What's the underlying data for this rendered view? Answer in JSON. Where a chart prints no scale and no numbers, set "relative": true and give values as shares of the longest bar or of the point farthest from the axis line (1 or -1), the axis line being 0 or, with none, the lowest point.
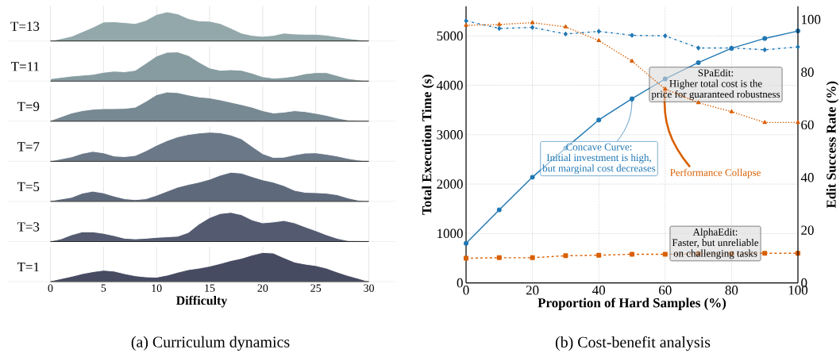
{
  "chart_data": [
    {
      "type": "area",
      "relative": true,
      "ylabel": "T=13",
      "color": "#93a8ab",
      "xlim": [
        -4,
        32.5
      ],
      "xticks": [
        0,
        5,
        10,
        15,
        20,
        25,
        30
      ],
      "grid": "x",
      "tick_labels": false,
      "x": [
        0,
        2,
        4,
        5,
        6,
        7,
        8,
        9,
        10,
        11,
        12,
        13,
        14,
        15,
        16,
        17,
        18,
        19,
        20,
        21,
        22,
        23,
        24,
        25,
        26,
        28,
        30
      ],
      "values": [
        0,
        0.16,
        0.47,
        0.65,
        0.66,
        0.63,
        0.6,
        0.71,
        0.91,
        1,
        0.93,
        0.77,
        0.69,
        0.68,
        0.6,
        0.44,
        0.27,
        0.19,
        0.16,
        0.19,
        0.27,
        0.24,
        0.23,
        0.23,
        0.2,
        0.09,
        0
      ]
    },
    {
      "type": "area",
      "relative": true,
      "ylabel": "T=11",
      "color": "#879ca0",
      "xlim": [
        -4,
        32.5
      ],
      "xticks": [
        0,
        5,
        10,
        15,
        20,
        25,
        30
      ],
      "grid": "x",
      "tick_labels": false,
      "x": [
        0,
        2,
        4,
        5,
        6,
        7,
        8,
        9,
        10,
        11,
        12,
        13,
        14,
        15,
        16,
        17,
        18,
        19,
        20,
        21,
        22,
        23,
        24,
        25,
        26,
        27,
        28,
        29,
        30
      ],
      "values": [
        0.08,
        0.17,
        0.23,
        0.3,
        0.34,
        0.32,
        0.37,
        0.61,
        0.86,
        0.99,
        1,
        0.88,
        0.65,
        0.45,
        0.37,
        0.39,
        0.37,
        0.27,
        0.15,
        0.1,
        0.12,
        0.17,
        0.25,
        0.29,
        0.29,
        0.19,
        0.09,
        0.04,
        0
      ]
    },
    {
      "type": "area",
      "relative": true,
      "ylabel": "T=9",
      "color": "#778993",
      "xlim": [
        -4,
        32.5
      ],
      "xticks": [
        0,
        5,
        10,
        15,
        20,
        25,
        30
      ],
      "grid": "x",
      "tick_labels": false,
      "x": [
        0,
        2,
        3,
        4,
        5,
        6,
        7,
        8,
        9,
        10,
        11,
        12,
        13,
        14,
        15,
        16,
        17,
        18,
        19,
        20,
        21,
        22,
        23,
        24,
        25,
        26,
        27,
        28,
        30
      ],
      "values": [
        0.02,
        0.28,
        0.36,
        0.41,
        0.43,
        0.43,
        0.44,
        0.48,
        0.68,
        0.91,
        1,
        0.98,
        0.9,
        0.83,
        0.8,
        0.73,
        0.65,
        0.57,
        0.48,
        0.36,
        0.28,
        0.31,
        0.36,
        0.33,
        0.27,
        0.2,
        0.11,
        0.04,
        0
      ]
    },
    {
      "type": "area",
      "relative": true,
      "ylabel": "T=7",
      "color": "#6a7888",
      "xlim": [
        -4,
        32.5
      ],
      "xticks": [
        0,
        5,
        10,
        15,
        20,
        25,
        30
      ],
      "grid": "x",
      "tick_labels": false,
      "x": [
        0,
        2,
        3,
        4,
        5,
        6,
        7,
        8,
        9,
        10,
        11,
        12,
        13,
        14,
        15,
        16,
        17,
        18,
        19,
        20,
        21,
        22,
        23,
        24,
        25,
        26,
        27,
        28,
        29,
        30
      ],
      "values": [
        0.01,
        0.15,
        0.27,
        0.34,
        0.29,
        0.18,
        0.16,
        0.2,
        0.36,
        0.55,
        0.71,
        0.84,
        0.92,
        0.97,
        1,
        0.98,
        0.9,
        0.77,
        0.51,
        0.26,
        0.13,
        0.14,
        0.22,
        0.28,
        0.29,
        0.24,
        0.18,
        0.1,
        0.04,
        0
      ]
    },
    {
      "type": "area",
      "relative": true,
      "ylabel": "T=5",
      "color": "#5e6a7c",
      "xlim": [
        -4,
        32.5
      ],
      "xticks": [
        0,
        5,
        10,
        15,
        20,
        25,
        30
      ],
      "grid": "x",
      "tick_labels": false,
      "x": [
        0,
        2,
        3,
        4,
        5,
        6,
        7,
        8,
        9,
        10,
        11,
        12,
        13,
        14,
        15,
        16,
        17,
        18,
        19,
        20,
        21,
        22,
        23,
        24,
        25,
        26,
        27,
        28,
        29,
        30
      ],
      "values": [
        0.02,
        0.14,
        0.28,
        0.35,
        0.29,
        0.18,
        0.09,
        0.06,
        0.09,
        0.21,
        0.35,
        0.49,
        0.58,
        0.66,
        0.76,
        0.9,
        1,
        0.97,
        0.85,
        0.74,
        0.66,
        0.54,
        0.38,
        0.31,
        0.3,
        0.28,
        0.23,
        0.12,
        0.04,
        0
      ]
    },
    {
      "type": "area",
      "relative": true,
      "ylabel": "T=3",
      "color": "#545b70",
      "xlim": [
        -4,
        32.5
      ],
      "xticks": [
        0,
        5,
        10,
        15,
        20,
        25,
        30
      ],
      "grid": "x",
      "tick_labels": false,
      "x": [
        0,
        1,
        2,
        3,
        4,
        5,
        6,
        7,
        8,
        9,
        10,
        11,
        12,
        13,
        14,
        15,
        16,
        17,
        18,
        19,
        20,
        21,
        22,
        23,
        24,
        25,
        26,
        27,
        28,
        30
      ],
      "values": [
        0.01,
        0.09,
        0.23,
        0.33,
        0.33,
        0.28,
        0.2,
        0.11,
        0.09,
        0.11,
        0.14,
        0.16,
        0.18,
        0.31,
        0.6,
        0.82,
        0.96,
        1,
        0.92,
        0.74,
        0.64,
        0.67,
        0.72,
        0.64,
        0.5,
        0.37,
        0.23,
        0.11,
        0.03,
        0
      ]
    },
    {
      "type": "area",
      "relative": true,
      "ylabel": "T=1",
      "color": "#474b62",
      "xlim": [
        -4,
        32.5
      ],
      "xticks": [
        0,
        5,
        10,
        15,
        20,
        25,
        30
      ],
      "grid": "x",
      "tick_labels": "x",
      "xlabel": "Difficulty",
      "title": "(a) Curriculum dynamics",
      "x": [
        0,
        2,
        3,
        4,
        5,
        6,
        7,
        8,
        9,
        10,
        11,
        12,
        13,
        14,
        15,
        16,
        17,
        18,
        19,
        20,
        21,
        22,
        23,
        24,
        25,
        26,
        27,
        28,
        29,
        30
      ],
      "values": [
        0.02,
        0.18,
        0.27,
        0.34,
        0.39,
        0.36,
        0.27,
        0.2,
        0.16,
        0.15,
        0.22,
        0.32,
        0.41,
        0.46,
        0.53,
        0.62,
        0.72,
        0.8,
        0.91,
        1,
        0.98,
        0.82,
        0.67,
        0.6,
        0.55,
        0.46,
        0.33,
        0.21,
        0.11,
        0
      ]
    },
    {
      "type": "line",
      "title": "(b) Cost-benefit analysis",
      "xlabel": "Proportion of Hard Samples (%)",
      "ylabel": "Total Execution Time (s)",
      "y2label": "Edit Success Rate (%)",
      "x": [
        0,
        10,
        20,
        30,
        40,
        50,
        60,
        70,
        80,
        90,
        100
      ],
      "xlim": [
        0,
        100
      ],
      "xticks": [
        0,
        20,
        40,
        60,
        80,
        100
      ],
      "ylim": [
        0,
        5600
      ],
      "yticks": [
        0,
        1000,
        2000,
        3000,
        4000,
        5000
      ],
      "y2lim": [
        0,
        105
      ],
      "y2ticks": [
        0,
        20,
        40,
        60,
        80,
        100
      ],
      "grid": true,
      "series": [
        {
          "color": "#1f77b4",
          "marker": "circle",
          "line_style": "solid",
          "values": [
            800,
            1480,
            2140,
            2730,
            3300,
            3730,
            4130,
            4460,
            4750,
            4950,
            5100
          ]
        },
        {
          "color": "#d95f02",
          "marker": "square",
          "line_style": "dashed",
          "values": [
            500,
            510,
            510,
            550,
            560,
            580,
            580,
            590,
            590,
            600,
            600
          ]
        },
        {
          "color": "#1f77b4",
          "marker": "diamond",
          "line_style": "dashdot",
          "axis": "y2",
          "values": [
            99.5,
            96.6,
            97,
            94.5,
            95.5,
            94,
            93.8,
            89.2,
            89.2,
            88.5,
            89.6
          ]
        },
        {
          "color": "#d95f02",
          "marker": "triangle",
          "line_style": "dotted",
          "axis": "y2",
          "values": [
            97.8,
            98.1,
            98.8,
            97.2,
            92,
            84.2,
            73.6,
            68.4,
            65,
            60.9,
            60.9
          ]
        }
      ],
      "annotations": [
        {
          "text": "Concave Curve:",
          "x": 50,
          "y": 3730
        },
        "Initial investment is high,",
        "but marginal cost decreases",
        {
          "text": "Performance Collapse",
          "x": 60,
          "y": 3930
        },
        "SPaEdit:",
        "Higher total cost is the",
        "price for guaranteed robustness",
        "AlphaEdit:",
        "Faster, but unreliable",
        "on challenging tasks"
      ]
    }
  ]
}
